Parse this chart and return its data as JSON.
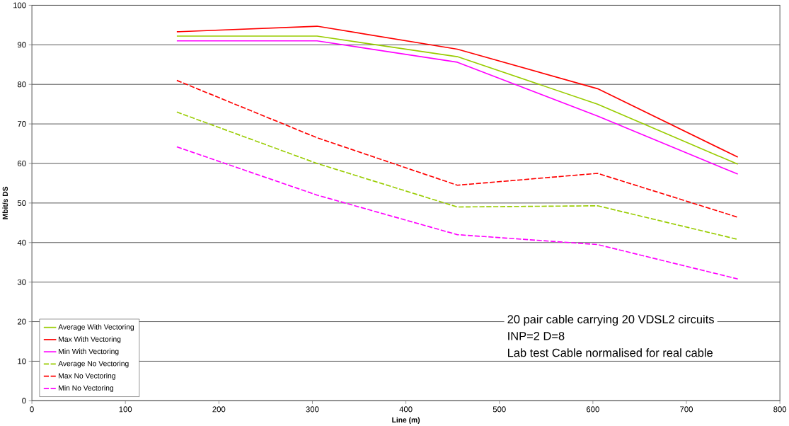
{
  "chart_data": {
    "type": "line",
    "xlabel": "Line (m)",
    "ylabel": "Mbit/s DS",
    "x": [
      155,
      305,
      455,
      605,
      755
    ],
    "series": [
      {
        "name": "Average With Vectoring",
        "color": "#99cc00",
        "line_style": "solid",
        "values": [
          92.2,
          92.2,
          87,
          75,
          59.8
        ]
      },
      {
        "name": "Max With Vectoring",
        "color": "#ff0000",
        "line_style": "solid",
        "values": [
          93.3,
          94.7,
          88.9,
          78.9,
          61.6
        ]
      },
      {
        "name": "Min With Vectoring",
        "color": "#ff00ff",
        "line_style": "solid",
        "values": [
          91,
          91,
          85.6,
          72,
          57.3
        ]
      },
      {
        "name": "Average No Vectoring",
        "color": "#99cc00",
        "line_style": "dashed",
        "values": [
          73,
          60,
          49,
          49.3,
          40.8
        ]
      },
      {
        "name": "Max No Vectoring",
        "color": "#ff0000",
        "line_style": "dashed",
        "values": [
          81,
          66.5,
          54.5,
          57.5,
          46.4
        ]
      },
      {
        "name": "Min No Vectoring",
        "color": "#ff00ff",
        "line_style": "dashed",
        "values": [
          64.2,
          52,
          42,
          39.5,
          30.8
        ]
      }
    ],
    "xlim": [
      0,
      800
    ],
    "xticks": [
      0,
      100,
      200,
      300,
      400,
      500,
      600,
      700,
      800
    ],
    "ylim": [
      0,
      100
    ],
    "yticks": [
      0,
      10,
      20,
      30,
      40,
      50,
      60,
      70,
      80,
      90,
      100
    ],
    "grid": "y",
    "legend": "bottom left",
    "marker": "none",
    "annotations": [
      "20 pair cable carrying 20 VDSL2 circuits",
      "INP=2 D=8",
      "Lab test Cable normalised for real cable"
    ]
  }
}
